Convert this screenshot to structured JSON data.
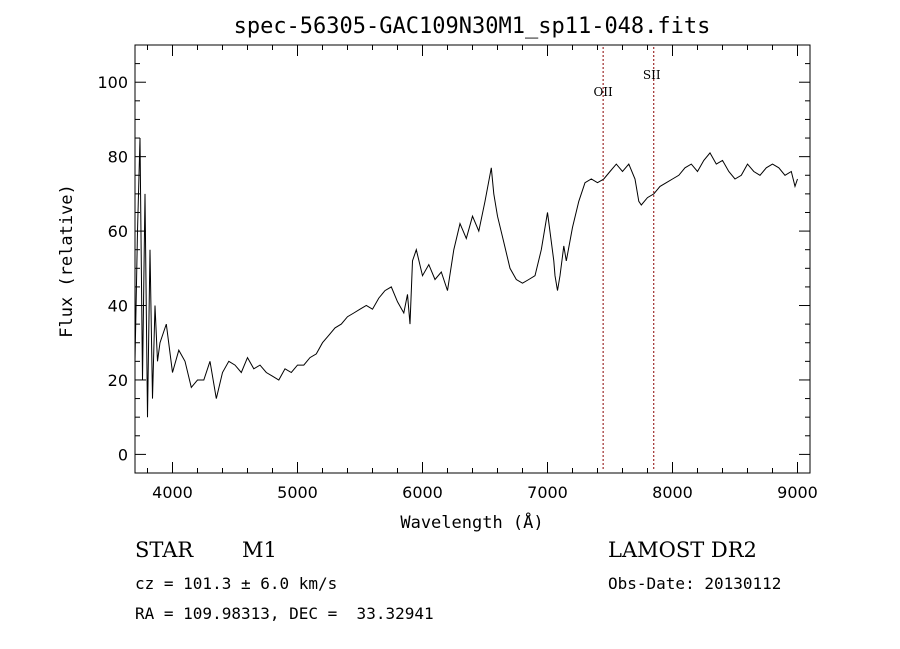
{
  "chart_data": {
    "type": "line",
    "title": "spec-56305-GAC109N30M1_sp11-048.fits",
    "xlabel": "Wavelength (Å)",
    "ylabel": "Flux (relative)",
    "xlim": [
      3700,
      9100
    ],
    "ylim": [
      -5,
      110
    ],
    "xticks": [
      4000,
      5000,
      6000,
      7000,
      8000,
      9000
    ],
    "yticks": [
      0,
      20,
      40,
      60,
      80,
      100
    ],
    "grid": false,
    "line_color": "#000000",
    "marker_color": "#8b0000",
    "lines": [
      {
        "name": "OII",
        "x": 7445
      },
      {
        "name": "SII",
        "x": 7850
      }
    ],
    "series": [
      {
        "x": [
          3700,
          3720,
          3740,
          3760,
          3780,
          3800,
          3820,
          3840,
          3860,
          3880,
          3900,
          3950,
          4000,
          4050,
          4100,
          4150,
          4200,
          4250,
          4300,
          4350,
          4400,
          4450,
          4500,
          4550,
          4600,
          4650,
          4700,
          4750,
          4800,
          4850,
          4900,
          4950,
          5000,
          5050,
          5100,
          5150,
          5200,
          5250,
          5300,
          5350,
          5400,
          5450,
          5500,
          5550,
          5600,
          5650,
          5700,
          5750,
          5800,
          5850,
          5880,
          5900,
          5920,
          5950,
          6000,
          6050,
          6100,
          6150,
          6200,
          6250,
          6300,
          6350,
          6400,
          6450,
          6500,
          6550,
          6570,
          6600,
          6650,
          6700,
          6750,
          6800,
          6850,
          6900,
          6950,
          7000,
          7050,
          7060,
          7080,
          7100,
          7130,
          7150,
          7200,
          7250,
          7300,
          7350,
          7400,
          7450,
          7500,
          7550,
          7600,
          7650,
          7700,
          7730,
          7750,
          7800,
          7850,
          7900,
          7950,
          8000,
          8050,
          8100,
          8150,
          8200,
          8250,
          8300,
          8350,
          8400,
          8450,
          8500,
          8550,
          8600,
          8650,
          8700,
          8750,
          8800,
          8850,
          8900,
          8950,
          8980,
          9000
        ],
        "y": [
          25,
          60,
          85,
          20,
          70,
          10,
          55,
          15,
          40,
          25,
          30,
          35,
          22,
          28,
          25,
          18,
          20,
          20,
          25,
          15,
          22,
          25,
          24,
          22,
          26,
          23,
          24,
          22,
          21,
          20,
          23,
          22,
          24,
          24,
          26,
          27,
          30,
          32,
          34,
          35,
          37,
          38,
          39,
          40,
          39,
          42,
          44,
          45,
          41,
          38,
          43,
          35,
          52,
          55,
          48,
          51,
          47,
          49,
          44,
          55,
          62,
          58,
          64,
          60,
          68,
          77,
          70,
          64,
          57,
          50,
          47,
          46,
          47,
          48,
          55,
          65,
          52,
          48,
          44,
          48,
          56,
          52,
          61,
          68,
          73,
          74,
          73,
          74,
          76,
          78,
          76,
          78,
          74,
          68,
          67,
          69,
          70,
          72,
          73,
          74,
          75,
          77,
          78,
          76,
          79,
          81,
          78,
          79,
          76,
          74,
          75,
          78,
          76,
          75,
          77,
          78,
          77,
          75,
          76,
          72,
          74
        ]
      }
    ]
  },
  "info": {
    "object_class": "STAR",
    "subclass": "M1",
    "survey": "LAMOST DR2",
    "redshift": "cz = 101.3 ± 6.0 km/s",
    "obs_date": "Obs-Date: 20130112",
    "coords": "RA = 109.98313, DEC =  33.32941"
  }
}
